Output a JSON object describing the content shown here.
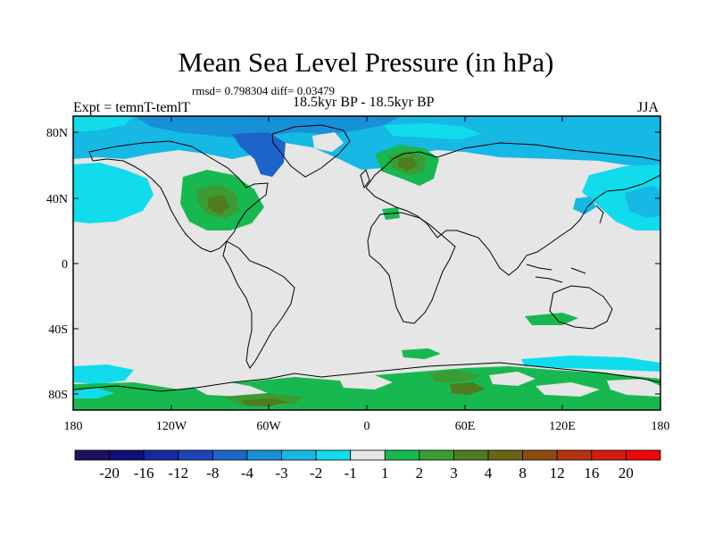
{
  "header": {
    "title": "Mean Sea Level Pressure (in hPa)",
    "stats": "rmsd= 0.798304 diff= 0.03479",
    "experiment": "Expt = temnT-temlT",
    "period": "18.5kyr BP - 18.5kyr BP",
    "season": "JJA"
  },
  "map": {
    "lat_labels": [
      "80N",
      "40N",
      "0",
      "40S",
      "80S"
    ],
    "lon_labels": [
      "180",
      "120W",
      "60W",
      "0",
      "60E",
      "120E",
      "180"
    ],
    "lon_range": [
      -180,
      180
    ],
    "lat_range": [
      -90,
      90
    ]
  },
  "colorbar": {
    "labels": [
      "-20",
      "-16",
      "-12",
      "-8",
      "-4",
      "-3",
      "-2",
      "-1",
      "1",
      "2",
      "3",
      "4",
      "8",
      "12",
      "16",
      "20"
    ],
    "colors": [
      "#201060",
      "#10107c",
      "#1828a0",
      "#1c44b8",
      "#1c64c8",
      "#1890d8",
      "#16b8e4",
      "#10dcec",
      "#e6e6e6",
      "#18b850",
      "#3c9c34",
      "#507c20",
      "#6c6414",
      "#8c4c10",
      "#b43410",
      "#d41c10",
      "#ee0808"
    ]
  },
  "colors": {
    "background": "#e6e6e6",
    "coast": "#000000"
  }
}
